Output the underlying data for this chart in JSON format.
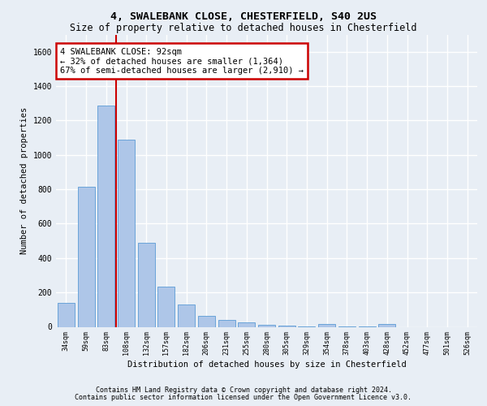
{
  "title1": "4, SWALEBANK CLOSE, CHESTERFIELD, S40 2US",
  "title2": "Size of property relative to detached houses in Chesterfield",
  "xlabel": "Distribution of detached houses by size in Chesterfield",
  "ylabel": "Number of detached properties",
  "categories": [
    "34sqm",
    "59sqm",
    "83sqm",
    "108sqm",
    "132sqm",
    "157sqm",
    "182sqm",
    "206sqm",
    "231sqm",
    "255sqm",
    "280sqm",
    "305sqm",
    "329sqm",
    "354sqm",
    "378sqm",
    "403sqm",
    "428sqm",
    "452sqm",
    "477sqm",
    "501sqm",
    "526sqm"
  ],
  "values": [
    140,
    815,
    1285,
    1090,
    490,
    235,
    128,
    65,
    38,
    27,
    14,
    7,
    4,
    16,
    3,
    3,
    15,
    0,
    0,
    0,
    0
  ],
  "bar_color": "#aec6e8",
  "bar_edge_color": "#5b9bd5",
  "ylim": [
    0,
    1700
  ],
  "yticks": [
    0,
    200,
    400,
    600,
    800,
    1000,
    1200,
    1400,
    1600
  ],
  "annotation_text": "4 SWALEBANK CLOSE: 92sqm\n← 32% of detached houses are smaller (1,364)\n67% of semi-detached houses are larger (2,910) →",
  "annotation_box_color": "#ffffff",
  "annotation_box_edge": "#cc0000",
  "vline_color": "#cc0000",
  "footer1": "Contains HM Land Registry data © Crown copyright and database right 2024.",
  "footer2": "Contains public sector information licensed under the Open Government Licence v3.0.",
  "bg_color": "#e8eef5",
  "plot_bg_color": "#e8eef5",
  "grid_color": "#ffffff"
}
